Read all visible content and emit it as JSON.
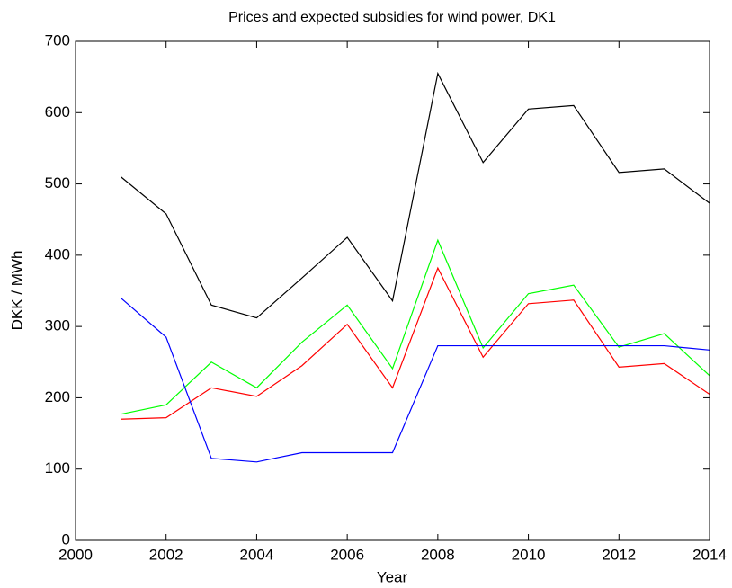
{
  "chart_data": {
    "type": "line",
    "title": "Prices and expected subsidies for wind power, DK1",
    "xlabel": "Year",
    "ylabel": "DKK / MWh",
    "x": [
      2001,
      2002,
      2003,
      2004,
      2005,
      2006,
      2007,
      2008,
      2009,
      2010,
      2011,
      2012,
      2013,
      2014
    ],
    "series": [
      {
        "color": "#000000",
        "values": [
          510,
          458,
          330,
          312,
          368,
          425,
          336,
          655,
          530,
          605,
          610,
          516,
          521,
          473
        ]
      },
      {
        "color": "#00ff00",
        "values": [
          177,
          190,
          250,
          214,
          278,
          330,
          241,
          421,
          270,
          346,
          358,
          271,
          290,
          231
        ]
      },
      {
        "color": "#ff0000",
        "values": [
          170,
          172,
          214,
          202,
          245,
          303,
          214,
          382,
          257,
          332,
          337,
          243,
          248,
          205
        ]
      },
      {
        "color": "#0000ff",
        "values": [
          340,
          285,
          115,
          110,
          123,
          123,
          123,
          273,
          273,
          273,
          273,
          273,
          273,
          267
        ]
      }
    ],
    "xlim": [
      2000,
      2014
    ],
    "xticks": [
      2000,
      2002,
      2004,
      2006,
      2008,
      2010,
      2012,
      2014
    ],
    "ylim": [
      0,
      700
    ],
    "yticks": [
      0,
      100,
      200,
      300,
      400,
      500,
      600,
      700
    ],
    "grid": false
  }
}
